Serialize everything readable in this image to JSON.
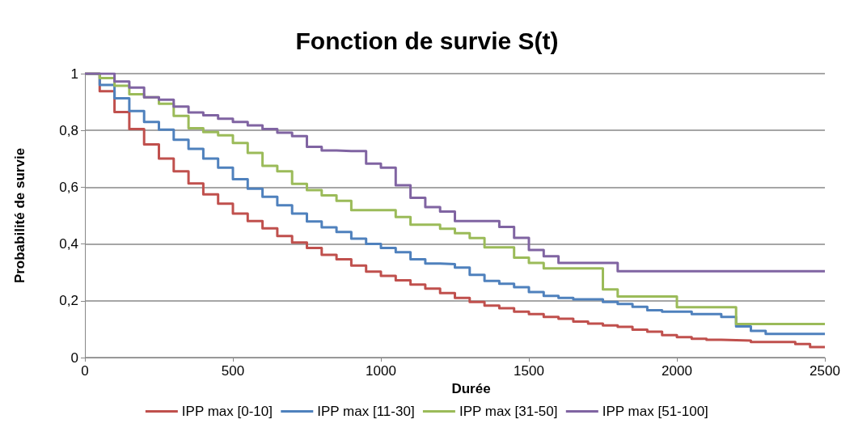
{
  "chart_data": {
    "type": "step",
    "title": "Fonction de survie S(t)",
    "xlabel": "Durée",
    "ylabel": "Probabilité de survie",
    "x": [
      0,
      50,
      100,
      150,
      200,
      250,
      300,
      350,
      400,
      450,
      500,
      550,
      600,
      650,
      700,
      750,
      800,
      850,
      900,
      950,
      1000,
      1050,
      1100,
      1150,
      1200,
      1250,
      1300,
      1350,
      1400,
      1450,
      1500,
      1550,
      1600,
      1650,
      1700,
      1750,
      1800,
      1850,
      1900,
      1950,
      2000,
      2050,
      2100,
      2150,
      2200,
      2250,
      2300,
      2350,
      2400,
      2450,
      2500
    ],
    "series": [
      {
        "name": "IPP max [0-10]",
        "color": "#c0504d",
        "values": [
          1,
          0.938,
          0.865,
          0.805,
          0.751,
          0.701,
          0.656,
          0.613,
          0.575,
          0.542,
          0.507,
          0.481,
          0.455,
          0.428,
          0.405,
          0.386,
          0.362,
          0.346,
          0.324,
          0.303,
          0.288,
          0.272,
          0.257,
          0.243,
          0.227,
          0.21,
          0.196,
          0.183,
          0.174,
          0.162,
          0.153,
          0.143,
          0.137,
          0.127,
          0.12,
          0.113,
          0.108,
          0.098,
          0.091,
          0.079,
          0.072,
          0.066,
          0.063,
          0.061,
          0.06,
          0.055,
          0.055,
          0.055,
          0.048,
          0.037,
          0.037
        ]
      },
      {
        "name": "IPP max [11-30]",
        "color": "#4f81bd",
        "values": [
          1,
          0.96,
          0.913,
          0.868,
          0.83,
          0.803,
          0.767,
          0.735,
          0.701,
          0.669,
          0.628,
          0.595,
          0.566,
          0.536,
          0.507,
          0.479,
          0.459,
          0.442,
          0.419,
          0.4,
          0.386,
          0.371,
          0.346,
          0.331,
          0.329,
          0.317,
          0.291,
          0.27,
          0.26,
          0.248,
          0.231,
          0.217,
          0.21,
          0.205,
          0.205,
          0.196,
          0.189,
          0.179,
          0.167,
          0.162,
          0.162,
          0.153,
          0.153,
          0.143,
          0.11,
          0.094,
          0.083,
          0.083,
          0.083,
          0.083,
          0.083
        ]
      },
      {
        "name": "IPP max [31-50]",
        "color": "#9bbb59",
        "values": [
          1,
          0.984,
          0.957,
          0.927,
          0.917,
          0.894,
          0.851,
          0.808,
          0.794,
          0.783,
          0.756,
          0.721,
          0.675,
          0.656,
          0.612,
          0.59,
          0.571,
          0.552,
          0.519,
          0.519,
          0.519,
          0.495,
          0.468,
          0.468,
          0.454,
          0.438,
          0.421,
          0.388,
          0.388,
          0.352,
          0.333,
          0.314,
          0.314,
          0.314,
          0.314,
          0.24,
          0.215,
          0.215,
          0.215,
          0.215,
          0.177,
          0.177,
          0.177,
          0.177,
          0.118,
          0.118,
          0.118,
          0.118,
          0.118,
          0.118,
          0.118
        ]
      },
      {
        "name": "IPP max [51-100]",
        "color": "#8064a2",
        "values": [
          1,
          1,
          0.972,
          0.951,
          0.917,
          0.908,
          0.884,
          0.863,
          0.853,
          0.841,
          0.83,
          0.818,
          0.805,
          0.792,
          0.78,
          0.742,
          0.729,
          0.727,
          0.727,
          0.683,
          0.669,
          0.607,
          0.563,
          0.53,
          0.514,
          0.481,
          0.481,
          0.481,
          0.46,
          0.422,
          0.379,
          0.357,
          0.333,
          0.333,
          0.333,
          0.333,
          0.304,
          0.304,
          0.304,
          0.304,
          0.304,
          0.304,
          0.304,
          0.304,
          0.304,
          0.304,
          0.304,
          0.304,
          0.304,
          0.304,
          0.304
        ]
      }
    ],
    "xlim": [
      0,
      2500
    ],
    "xticks": [
      0,
      500,
      1000,
      1500,
      2000,
      2500
    ],
    "ylim": [
      0,
      1
    ],
    "yticks": [
      0,
      {
        "value": 0.2,
        "label": "0,2"
      },
      {
        "value": 0.4,
        "label": "0,4"
      },
      {
        "value": 0.6,
        "label": "0,6"
      },
      {
        "value": 0.8,
        "label": "0,8"
      },
      1
    ],
    "grid": "y",
    "legend": "bottom",
    "marker": "none",
    "line_style": "solid"
  }
}
